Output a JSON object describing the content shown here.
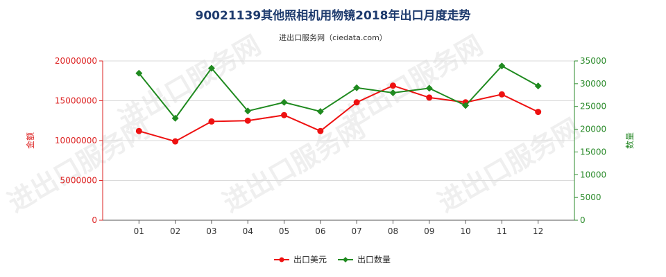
{
  "chart_data": {
    "type": "line",
    "title": "90021139其他照相机用物镜2018年出口月度走势",
    "subtitle": "进出口服务网（ciedata.com）",
    "watermark": "进出口服务网",
    "categories": [
      "01",
      "02",
      "03",
      "04",
      "05",
      "06",
      "07",
      "08",
      "09",
      "10",
      "11",
      "12"
    ],
    "y_left": {
      "label": "金额",
      "range": [
        0,
        20000000
      ],
      "ticks": [
        0,
        5000000,
        10000000,
        15000000,
        20000000
      ],
      "tick_labels": [
        "0",
        "5000000",
        "10000000",
        "15000000",
        "20000000"
      ],
      "color": "#dd2222"
    },
    "y_right": {
      "label": "数量",
      "range": [
        0,
        35000
      ],
      "ticks": [
        0,
        5000,
        10000,
        15000,
        20000,
        25000,
        30000,
        35000
      ],
      "tick_labels": [
        "0",
        "5000",
        "10000",
        "15000",
        "20000",
        "25000",
        "30000",
        "35000"
      ],
      "color": "#2a8a2a"
    },
    "grid": true,
    "legend_position": "bottom-center",
    "series": [
      {
        "name": "出口美元",
        "axis": "left",
        "marker": "circle",
        "color": "#ee1111",
        "values": [
          11200000,
          9900000,
          12400000,
          12500000,
          13200000,
          11200000,
          14800000,
          16900000,
          15400000,
          14800000,
          15800000,
          13600000
        ]
      },
      {
        "name": "出口数量",
        "axis": "right",
        "marker": "diamond",
        "color": "#1f8a1f",
        "values": [
          32300,
          22400,
          33400,
          24000,
          25900,
          23900,
          29100,
          28000,
          29000,
          25200,
          33900,
          29500
        ]
      }
    ]
  }
}
